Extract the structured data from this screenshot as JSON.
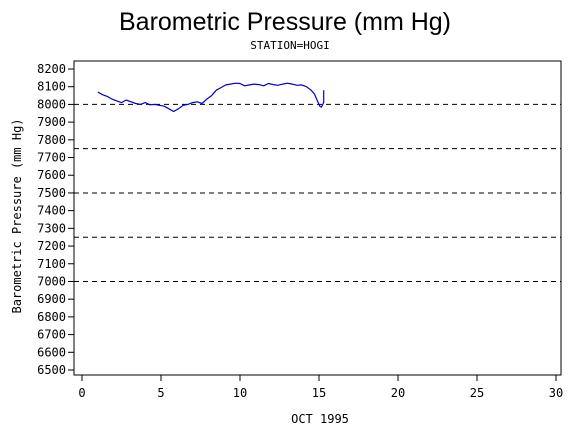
{
  "chart_data": {
    "type": "line",
    "title": "Barometric Pressure (mm Hg)",
    "subtitle": "STATION=HOGI",
    "xlabel": "OCT 1995",
    "ylabel": "Barometric Pressure (mm Hg)",
    "xlim": [
      0,
      30
    ],
    "ylim": [
      6500,
      8200
    ],
    "x_ticks": [
      "0",
      "5",
      "10",
      "15",
      "20",
      "25",
      "30"
    ],
    "y_ticks": [
      "6500",
      "6600",
      "6700",
      "6800",
      "6900",
      "7000",
      "7100",
      "7200",
      "7300",
      "7400",
      "7500",
      "7600",
      "7700",
      "7800",
      "7900",
      "8000",
      "8100",
      "8200"
    ],
    "reference_lines": [
      8000,
      7750,
      7500,
      7250,
      7000
    ],
    "grid": false,
    "line_color": "#0000cc",
    "series": [
      {
        "name": "",
        "x": [
          1.0,
          1.3,
          1.6,
          1.9,
          2.2,
          2.5,
          2.8,
          3.1,
          3.4,
          3.7,
          4.0,
          4.3,
          4.6,
          4.9,
          5.2,
          5.5,
          5.8,
          6.1,
          6.4,
          6.7,
          7.0,
          7.3,
          7.6,
          7.9,
          8.2,
          8.5,
          8.8,
          9.1,
          9.4,
          9.7,
          10.0,
          10.3,
          10.6,
          10.9,
          11.2,
          11.5,
          11.8,
          12.1,
          12.4,
          12.7,
          13.0,
          13.3,
          13.6,
          13.9,
          14.2,
          14.5,
          14.7,
          14.9,
          15.05,
          15.15,
          15.3,
          15.3
        ],
        "y": [
          8070,
          8055,
          8045,
          8030,
          8020,
          8010,
          8025,
          8015,
          8005,
          8000,
          8010,
          7998,
          8000,
          7995,
          7990,
          7975,
          7960,
          7975,
          7995,
          8000,
          8010,
          8015,
          8005,
          8030,
          8050,
          8080,
          8095,
          8110,
          8115,
          8120,
          8118,
          8105,
          8110,
          8115,
          8112,
          8105,
          8118,
          8112,
          8108,
          8115,
          8120,
          8115,
          8108,
          8110,
          8100,
          8080,
          8060,
          8020,
          7990,
          7985,
          8010,
          8080
        ]
      }
    ]
  }
}
